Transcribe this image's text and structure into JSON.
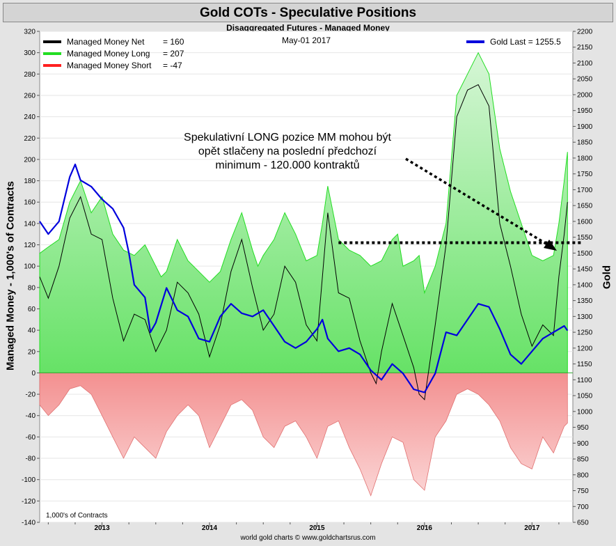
{
  "title": "Gold COTs - Speculative Positions",
  "subtitle": "Disaggregated Futures - Managed Money",
  "date_label": "May-01  2017",
  "footer": "world gold charts © www.goldchartsrus.com",
  "units_note": "1,000's of Contracts",
  "annotation": {
    "line1": "Spekulativní LONG pozice MM mohou být",
    "line2": "opět stlačeny na poslední předchozí",
    "line3": "minimum - 120.000 kontraktů"
  },
  "legend": [
    {
      "name": "Managed Money Net",
      "value": "= 160",
      "color": "#000000"
    },
    {
      "name": "Managed Money Long",
      "value": "= 207",
      "color": "#22dd22"
    },
    {
      "name": "Managed Money Short",
      "value": "= -47",
      "color": "#ff2020"
    }
  ],
  "legend_right": {
    "name": "Gold Last = 1255.5",
    "color": "#0000dd"
  },
  "chart_data": {
    "type": "area",
    "ylabel": "Managed Money - 1,000's of Contracts",
    "y2label": "Gold",
    "ylim": [
      -140,
      320
    ],
    "y2lim": [
      650,
      2200
    ],
    "yticks": [
      320,
      300,
      280,
      260,
      240,
      220,
      200,
      180,
      160,
      140,
      120,
      100,
      80,
      60,
      40,
      20,
      0,
      -20,
      -40,
      -60,
      -80,
      -100,
      -120,
      -140
    ],
    "y2ticks": [
      2200,
      2150,
      2100,
      2050,
      2000,
      1950,
      1900,
      1850,
      1800,
      1750,
      1700,
      1650,
      1600,
      1550,
      1500,
      1450,
      1400,
      1350,
      1300,
      1250,
      1200,
      1150,
      1100,
      1050,
      1000,
      950,
      900,
      850,
      800,
      750,
      700,
      650
    ],
    "xlim": [
      2012.42,
      2017.38
    ],
    "xticks": [
      "2013",
      "2014",
      "2015",
      "2016",
      "2017"
    ],
    "reference_line": 122,
    "series": [
      {
        "name": "Managed Money Long",
        "color": "#22dd22",
        "axis": "left",
        "x": [
          2012.42,
          2012.5,
          2012.6,
          2012.7,
          2012.8,
          2012.9,
          2013.0,
          2013.1,
          2013.2,
          2013.3,
          2013.4,
          2013.5,
          2013.55,
          2013.6,
          2013.7,
          2013.8,
          2013.9,
          2014.0,
          2014.1,
          2014.2,
          2014.3,
          2014.4,
          2014.45,
          2014.5,
          2014.6,
          2014.7,
          2014.8,
          2014.9,
          2015.0,
          2015.05,
          2015.1,
          2015.2,
          2015.3,
          2015.4,
          2015.5,
          2015.6,
          2015.7,
          2015.75,
          2015.8,
          2015.9,
          2015.95,
          2016.0,
          2016.1,
          2016.2,
          2016.3,
          2016.4,
          2016.5,
          2016.6,
          2016.7,
          2016.8,
          2016.9,
          2017.0,
          2017.1,
          2017.2,
          2017.25,
          2017.3,
          2017.33
        ],
        "values": [
          112,
          118,
          125,
          160,
          180,
          150,
          165,
          130,
          115,
          110,
          120,
          100,
          90,
          95,
          125,
          105,
          95,
          85,
          95,
          125,
          150,
          115,
          100,
          110,
          125,
          150,
          130,
          105,
          110,
          140,
          175,
          125,
          115,
          110,
          100,
          105,
          125,
          130,
          100,
          105,
          110,
          75,
          100,
          140,
          260,
          280,
          300,
          280,
          210,
          170,
          140,
          110,
          105,
          110,
          140,
          180,
          207
        ]
      },
      {
        "name": "Managed Money Short",
        "color": "#ff2020",
        "axis": "left",
        "x": [
          2012.42,
          2012.5,
          2012.6,
          2012.7,
          2012.8,
          2012.9,
          2013.0,
          2013.1,
          2013.2,
          2013.3,
          2013.4,
          2013.5,
          2013.6,
          2013.7,
          2013.8,
          2013.9,
          2014.0,
          2014.1,
          2014.2,
          2014.3,
          2014.4,
          2014.5,
          2014.6,
          2014.7,
          2014.8,
          2014.9,
          2015.0,
          2015.1,
          2015.2,
          2015.3,
          2015.4,
          2015.5,
          2015.6,
          2015.7,
          2015.8,
          2015.9,
          2016.0,
          2016.1,
          2016.2,
          2016.3,
          2016.4,
          2016.5,
          2016.6,
          2016.7,
          2016.8,
          2016.9,
          2017.0,
          2017.1,
          2017.2,
          2017.3,
          2017.33
        ],
        "values": [
          -30,
          -40,
          -30,
          -15,
          -12,
          -20,
          -40,
          -60,
          -80,
          -60,
          -70,
          -80,
          -55,
          -40,
          -30,
          -40,
          -70,
          -50,
          -30,
          -25,
          -35,
          -60,
          -70,
          -50,
          -45,
          -60,
          -80,
          -50,
          -45,
          -70,
          -90,
          -115,
          -85,
          -60,
          -65,
          -100,
          -110,
          -60,
          -45,
          -20,
          -15,
          -20,
          -30,
          -45,
          -70,
          -85,
          -90,
          -60,
          -75,
          -50,
          -47
        ]
      },
      {
        "name": "Managed Money Net",
        "color": "#000000",
        "axis": "left",
        "x": [
          2012.42,
          2012.5,
          2012.6,
          2012.7,
          2012.8,
          2012.9,
          2013.0,
          2013.1,
          2013.2,
          2013.3,
          2013.4,
          2013.5,
          2013.6,
          2013.7,
          2013.8,
          2013.9,
          2014.0,
          2014.1,
          2014.2,
          2014.3,
          2014.4,
          2014.5,
          2014.6,
          2014.7,
          2014.8,
          2014.9,
          2015.0,
          2015.05,
          2015.1,
          2015.2,
          2015.3,
          2015.4,
          2015.5,
          2015.55,
          2015.6,
          2015.7,
          2015.8,
          2015.9,
          2015.95,
          2016.0,
          2016.1,
          2016.2,
          2016.3,
          2016.4,
          2016.5,
          2016.6,
          2016.7,
          2016.8,
          2016.9,
          2017.0,
          2017.1,
          2017.2,
          2017.25,
          2017.3,
          2017.33
        ],
        "values": [
          90,
          70,
          100,
          145,
          165,
          130,
          125,
          70,
          30,
          55,
          50,
          20,
          40,
          85,
          75,
          55,
          15,
          45,
          95,
          125,
          80,
          40,
          55,
          100,
          85,
          45,
          30,
          90,
          150,
          75,
          70,
          30,
          0,
          -10,
          20,
          65,
          35,
          5,
          -20,
          -25,
          45,
          120,
          240,
          265,
          270,
          250,
          140,
          100,
          55,
          25,
          45,
          35,
          90,
          130,
          160
        ]
      },
      {
        "name": "Gold Last",
        "color": "#0000dd",
        "axis": "right",
        "x": [
          2012.42,
          2012.5,
          2012.6,
          2012.7,
          2012.75,
          2012.8,
          2012.9,
          2013.0,
          2013.1,
          2013.2,
          2013.25,
          2013.3,
          2013.4,
          2013.45,
          2013.5,
          2013.6,
          2013.7,
          2013.8,
          2013.9,
          2014.0,
          2014.1,
          2014.2,
          2014.3,
          2014.4,
          2014.5,
          2014.6,
          2014.7,
          2014.8,
          2014.9,
          2015.0,
          2015.05,
          2015.1,
          2015.2,
          2015.3,
          2015.4,
          2015.5,
          2015.6,
          2015.7,
          2015.8,
          2015.9,
          2016.0,
          2016.1,
          2016.2,
          2016.3,
          2016.4,
          2016.5,
          2016.6,
          2016.7,
          2016.8,
          2016.9,
          2017.0,
          2017.1,
          2017.2,
          2017.3,
          2017.33
        ],
        "values": [
          1600,
          1560,
          1600,
          1740,
          1780,
          1730,
          1710,
          1670,
          1640,
          1580,
          1500,
          1400,
          1360,
          1250,
          1280,
          1390,
          1320,
          1300,
          1230,
          1220,
          1300,
          1340,
          1310,
          1300,
          1320,
          1270,
          1220,
          1200,
          1220,
          1260,
          1290,
          1230,
          1190,
          1200,
          1180,
          1130,
          1100,
          1150,
          1120,
          1070,
          1060,
          1120,
          1250,
          1240,
          1290,
          1340,
          1330,
          1260,
          1180,
          1150,
          1190,
          1230,
          1250,
          1270,
          1255.5
        ]
      }
    ]
  }
}
